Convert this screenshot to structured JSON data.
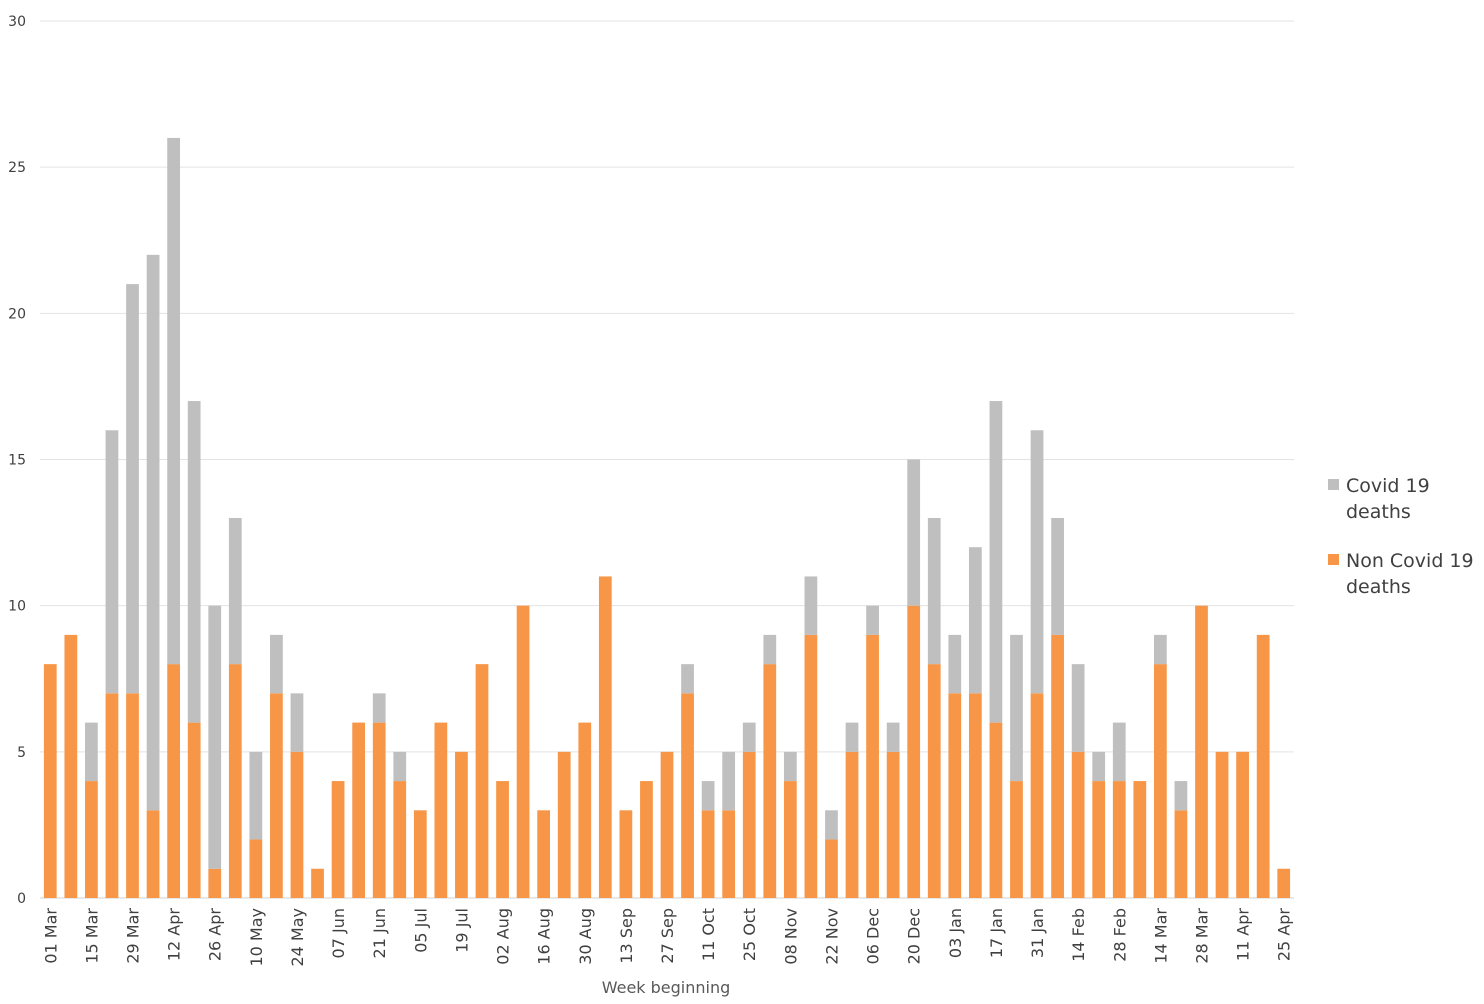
{
  "chart_data": {
    "type": "bar",
    "stacked": true,
    "xlabel": "Week beginning",
    "ylabel": "",
    "ylim": [
      0,
      30
    ],
    "yticks": [
      0,
      5,
      10,
      15,
      20,
      25,
      30
    ],
    "grid": true,
    "legend_position": "right",
    "categories": [
      "01 Mar",
      "08 Mar",
      "15 Mar",
      "22 Mar",
      "29 Mar",
      "05 Apr",
      "12 Apr",
      "19 Apr",
      "26 Apr",
      "03 May",
      "10 May",
      "17 May",
      "24 May",
      "31 May",
      "07 Jun",
      "14 Jun",
      "21 Jun",
      "28 Jun",
      "05 Jul",
      "12 Jul",
      "19 Jul",
      "26 Jul",
      "02 Aug",
      "09 Aug",
      "16 Aug",
      "23 Aug",
      "30 Aug",
      "06 Sep",
      "13 Sep",
      "20 Sep",
      "27 Sep",
      "04 Oct",
      "11 Oct",
      "18 Oct",
      "25 Oct",
      "01 Nov",
      "08 Nov",
      "15 Nov",
      "22 Nov",
      "29 Nov",
      "06 Dec",
      "13 Dec",
      "20 Dec",
      "27 Dec",
      "03 Jan",
      "10 Jan",
      "17 Jan",
      "24 Jan",
      "31 Jan",
      "07 Feb",
      "14 Feb",
      "21 Feb",
      "28 Feb",
      "07 Mar",
      "14 Mar",
      "21 Mar",
      "28 Mar",
      "04 Apr",
      "11 Apr",
      "18 Apr",
      "25 Apr"
    ],
    "tick_labels": [
      "01 Mar",
      "",
      "15 Mar",
      "",
      "29 Mar",
      "",
      "12 Apr",
      "",
      "26 Apr",
      "",
      "10 May",
      "",
      "24 May",
      "",
      "07 Jun",
      "",
      "21 Jun",
      "",
      "05 Jul",
      "",
      "19 Jul",
      "",
      "02 Aug",
      "",
      "16 Aug",
      "",
      "30 Aug",
      "",
      "13 Sep",
      "",
      "27 Sep",
      "",
      "11 Oct",
      "",
      "25 Oct",
      "",
      "08 Nov",
      "",
      "22 Nov",
      "",
      "06 Dec",
      "",
      "20 Dec",
      "",
      "03 Jan",
      "",
      "17 Jan",
      "",
      "31 Jan",
      "",
      "14 Feb",
      "",
      "28 Feb",
      "",
      "14 Mar",
      "",
      "28 Mar",
      "",
      "11 Apr",
      "",
      "25 Apr"
    ],
    "series": [
      {
        "name": "Non Covid 19 deaths",
        "color": "#F79646",
        "values": [
          8,
          9,
          4,
          7,
          7,
          3,
          8,
          6,
          1,
          8,
          2,
          7,
          5,
          1,
          4,
          6,
          6,
          4,
          3,
          6,
          5,
          8,
          4,
          10,
          3,
          5,
          6,
          11,
          3,
          4,
          5,
          7,
          3,
          3,
          5,
          8,
          4,
          9,
          2,
          5,
          9,
          5,
          10,
          8,
          7,
          7,
          6,
          4,
          7,
          9,
          5,
          4,
          4,
          4,
          8,
          3,
          10,
          5,
          5,
          9,
          1
        ]
      },
      {
        "name": "Covid 19 deaths",
        "color": "#BFBFBF",
        "values": [
          0,
          0,
          2,
          9,
          14,
          19,
          18,
          11,
          9,
          5,
          3,
          2,
          2,
          0,
          0,
          0,
          1,
          1,
          0,
          0,
          0,
          0,
          0,
          0,
          0,
          0,
          0,
          0,
          0,
          0,
          0,
          1,
          1,
          2,
          1,
          1,
          1,
          2,
          1,
          1,
          1,
          1,
          5,
          5,
          2,
          5,
          11,
          5,
          9,
          4,
          3,
          1,
          2,
          0,
          1,
          1,
          0,
          0,
          0,
          0,
          0
        ]
      }
    ]
  }
}
